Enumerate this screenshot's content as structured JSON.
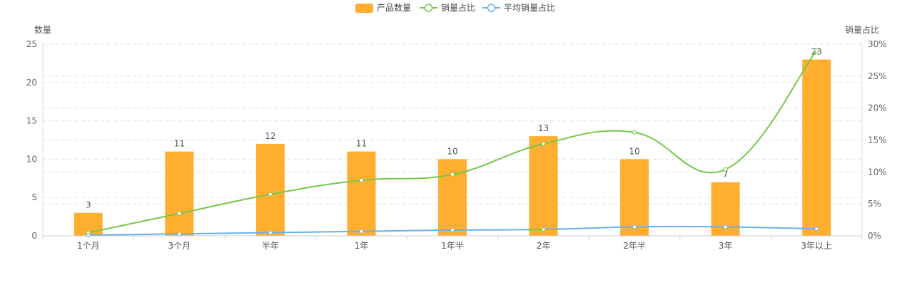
{
  "chart_data": {
    "type": "bar",
    "categories": [
      "1个月",
      "3个月",
      "半年",
      "1年",
      "1年半",
      "2年",
      "2年半",
      "3年",
      "3年以上"
    ],
    "series": [
      {
        "name": "产品数量",
        "type": "bar",
        "axis": "left",
        "color": "#FFAE30",
        "values": [
          3,
          11,
          12,
          11,
          10,
          13,
          10,
          7,
          23
        ],
        "labels_shown": true
      },
      {
        "name": "销量占比",
        "type": "line",
        "smooth": true,
        "axis": "right",
        "color": "#74C84B",
        "values": [
          0.5,
          3.5,
          6.5,
          8.7,
          9.6,
          14.4,
          16.2,
          10.4,
          29.0
        ]
      },
      {
        "name": "平均销量占比",
        "type": "line",
        "smooth": true,
        "axis": "right",
        "color": "#6AB0EC",
        "values": [
          0.1,
          0.3,
          0.5,
          0.7,
          0.9,
          1.0,
          1.4,
          1.4,
          1.1
        ]
      }
    ],
    "ylabel": "数量",
    "y2label": "销量占比",
    "ylim": [
      0,
      25
    ],
    "yticks": [
      "0",
      "5",
      "10",
      "15",
      "20",
      "25"
    ],
    "y2lim": [
      0,
      30
    ],
    "y2ticks": [
      "0%",
      "5%",
      "10%",
      "15%",
      "20%",
      "25%",
      "30%"
    ],
    "grid": "horizontal-dashed",
    "legend_position": "top-center"
  }
}
